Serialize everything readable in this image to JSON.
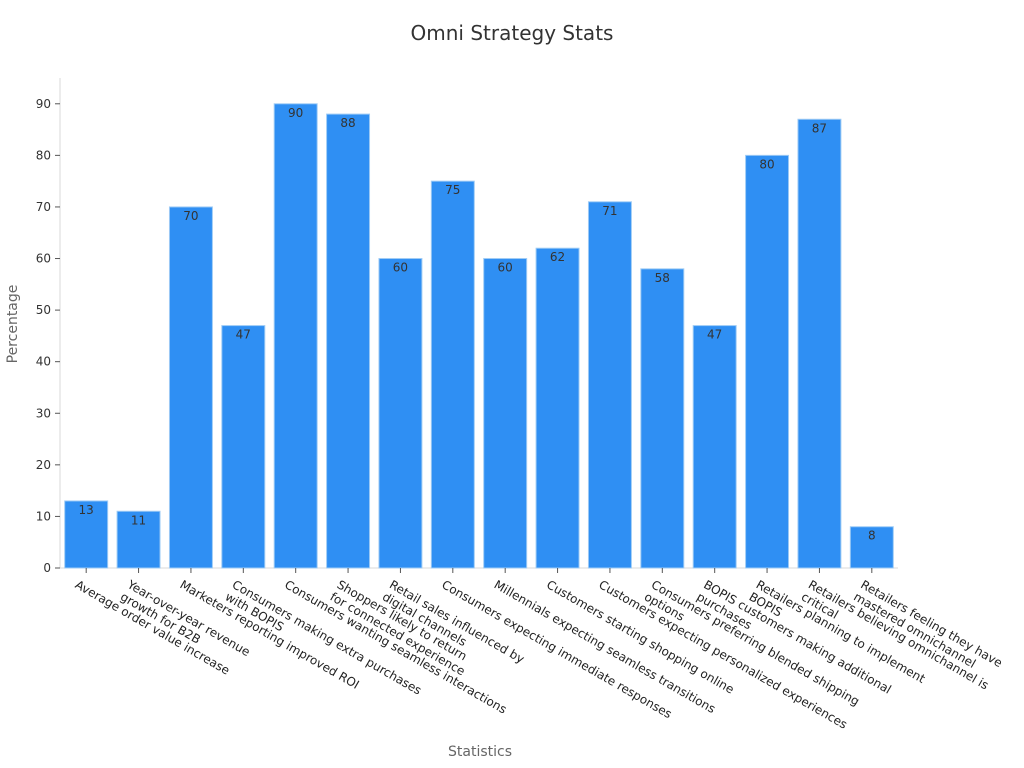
{
  "chart_data": {
    "type": "bar",
    "title": "Omni Strategy Stats",
    "xlabel": "Statistics",
    "ylabel": "Percentage",
    "ylim": [
      0,
      95
    ],
    "yticks": [
      0,
      10,
      20,
      30,
      40,
      50,
      60,
      70,
      80,
      90
    ],
    "grid": false,
    "legend": "none",
    "bar_color": "#2f8ff3",
    "bar_edge_color": "#9ecbf5",
    "categories": [
      "Average order value increase",
      "Year-over-year revenue growth for B2B",
      "Marketers reporting improved ROI",
      "Consumers making extra purchases with BOPIS",
      "Consumers wanting seamless interactions",
      "Shoppers likely to return for connected experience",
      "Retail sales influenced by digital channels",
      "Consumers expecting immediate responses",
      "Millennials expecting seamless transitions",
      "Customers starting shopping online",
      "Customers expecting personalized experiences",
      "Consumers preferring blended shipping options",
      "BOPIS customers making additional purchases",
      "Retailers planning to implement BOPIS",
      "Retailers believing omnichannel is critical",
      "Retailers feeling they have mastered omnichannel"
    ],
    "category_label_lines": [
      [
        "Average order value increase"
      ],
      [
        "Year-over-year revenue",
        "growth for B2B"
      ],
      [
        "Marketers reporting improved ROI"
      ],
      [
        "Consumers making extra purchases",
        "with BOPIS"
      ],
      [
        "Consumers wanting seamless interactions"
      ],
      [
        "Shoppers likely to return",
        "for connected experience"
      ],
      [
        "Retail sales influenced by",
        "digital channels"
      ],
      [
        "Consumers expecting immediate responses"
      ],
      [
        "Millennials expecting seamless transitions"
      ],
      [
        "Customers starting shopping online"
      ],
      [
        "Customers expecting personalized experiences"
      ],
      [
        "Consumers preferring blended shipping",
        "options"
      ],
      [
        "BOPIS customers making additional",
        "purchases"
      ],
      [
        "Retailers planning to implement",
        "BOPIS"
      ],
      [
        "Retailers believing omnichannel is",
        "critical"
      ],
      [
        "Retailers feeling they have",
        "mastered omnichannel"
      ]
    ],
    "values": [
      13,
      11,
      70,
      47,
      90,
      88,
      60,
      75,
      60,
      62,
      71,
      58,
      47,
      80,
      87,
      8
    ]
  }
}
